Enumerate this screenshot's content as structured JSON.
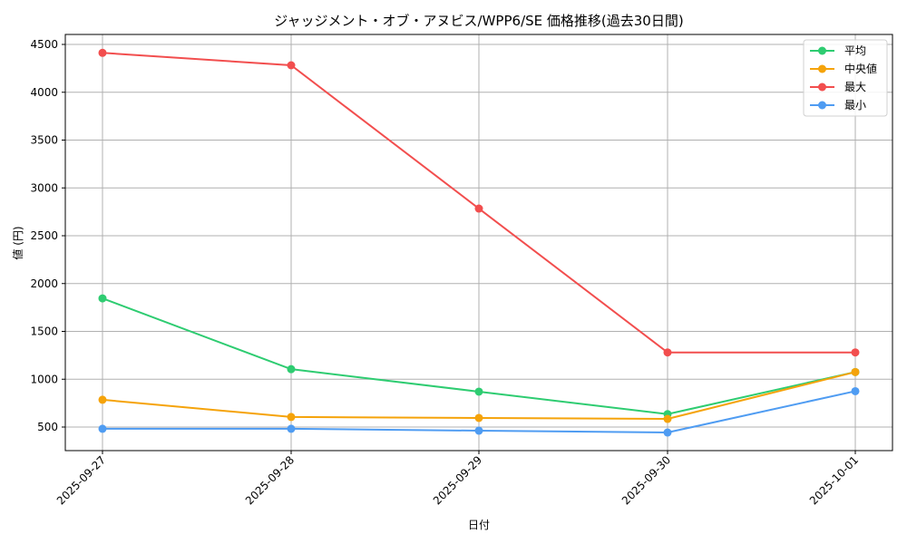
{
  "chart_data": {
    "type": "line",
    "title": "ジャッジメント・オブ・アヌビス/WPP6/SE 価格推移(過去30日間)",
    "xlabel": "日付",
    "ylabel": "値 (円)",
    "categories": [
      "2025-09-27",
      "2025-09-28",
      "2025-09-29",
      "2025-09-30",
      "2025-10-01"
    ],
    "series": [
      {
        "name": "平均",
        "color": "#2ecc71",
        "values": [
          1845,
          1105,
          870,
          635,
          1075
        ]
      },
      {
        "name": "中央値",
        "color": "#f5a30a",
        "values": [
          785,
          605,
          595,
          585,
          1075
        ]
      },
      {
        "name": "最大",
        "color": "#f24e4e",
        "values": [
          4412,
          4282,
          2784,
          1280,
          1280
        ]
      },
      {
        "name": "最小",
        "color": "#4f9cf2",
        "values": [
          482,
          482,
          462,
          443,
          875
        ]
      }
    ],
    "yticks": [
      500,
      1000,
      1500,
      2000,
      2500,
      3000,
      3500,
      4000,
      4500
    ],
    "ylim": [
      250,
      4665
    ],
    "grid": true,
    "legend_position": "upper right"
  }
}
